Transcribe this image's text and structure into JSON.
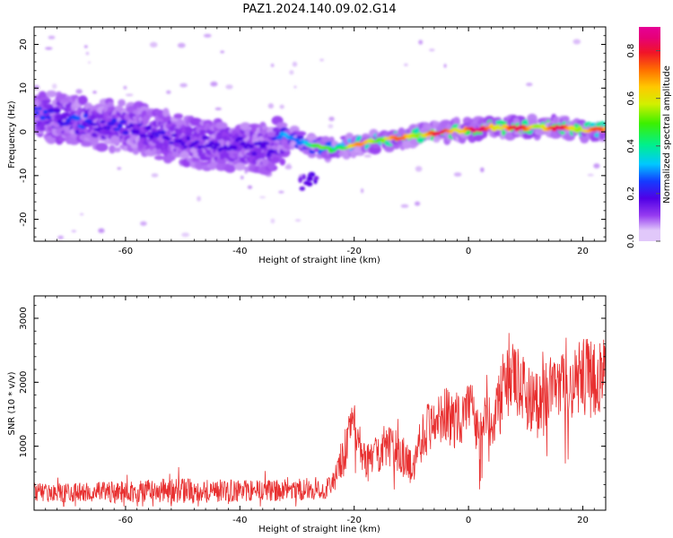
{
  "figure_title": "PAZ1.2024.140.09.02.G14",
  "chart_data": [
    {
      "type": "heatmap",
      "xlabel": "Height of straight line (km)",
      "ylabel": "Frequency (Hz)",
      "xlim": [
        -76,
        24
      ],
      "ylim": [
        -25,
        24
      ],
      "xticks": [
        "-60",
        "-40",
        "-20",
        "0",
        "20"
      ],
      "xtick_values": [
        -60,
        -40,
        -20,
        0,
        20
      ],
      "yticks": [
        "-20",
        "-10",
        "0",
        "10",
        "20"
      ],
      "ytick_values": [
        -20,
        -10,
        0,
        10,
        20
      ],
      "grid": false,
      "colorbar": {
        "label": "Normalized spectral amplitude",
        "ticks": [
          "0.0",
          "0.2",
          "0.4",
          "0.6",
          "0.8"
        ],
        "tick_values": [
          0.0,
          0.2,
          0.4,
          0.6,
          0.8
        ],
        "range": [
          0,
          0.9
        ]
      },
      "ridge": [
        {
          "x": -75,
          "y": 4,
          "a": 0.25
        },
        {
          "x": -70,
          "y": 3,
          "a": 0.28
        },
        {
          "x": -65,
          "y": 2,
          "a": 0.25
        },
        {
          "x": -60,
          "y": 1,
          "a": 0.22
        },
        {
          "x": -55,
          "y": 0,
          "a": 0.2
        },
        {
          "x": -50,
          "y": -2,
          "a": 0.2
        },
        {
          "x": -45,
          "y": -3,
          "a": 0.18
        },
        {
          "x": -40,
          "y": -3,
          "a": 0.17
        },
        {
          "x": -35,
          "y": -4,
          "a": 0.15
        },
        {
          "x": -32,
          "y": -1,
          "a": 0.35
        },
        {
          "x": -28,
          "y": -3,
          "a": 0.45
        },
        {
          "x": -24,
          "y": -4,
          "a": 0.6
        },
        {
          "x": -20,
          "y": -3,
          "a": 0.7
        },
        {
          "x": -16,
          "y": -2,
          "a": 0.75
        },
        {
          "x": -12,
          "y": -1.5,
          "a": 0.75
        },
        {
          "x": -8,
          "y": -0.5,
          "a": 0.8
        },
        {
          "x": -4,
          "y": 0,
          "a": 0.85
        },
        {
          "x": 0,
          "y": 0.5,
          "a": 0.9
        },
        {
          "x": 4,
          "y": 1,
          "a": 0.85
        },
        {
          "x": 8,
          "y": 1,
          "a": 0.85
        },
        {
          "x": 12,
          "y": 1,
          "a": 0.8
        },
        {
          "x": 16,
          "y": 1,
          "a": 0.85
        },
        {
          "x": 20,
          "y": 0.5,
          "a": 0.8
        },
        {
          "x": 24,
          "y": 0.5,
          "a": 0.75
        }
      ]
    },
    {
      "type": "line",
      "xlabel": "Height of straight line (km)",
      "ylabel": "SNR (10 * v/v)",
      "xlim": [
        -76,
        24
      ],
      "ylim": [
        0,
        3350
      ],
      "xticks": [
        "-60",
        "-40",
        "-20",
        "0",
        "20"
      ],
      "xtick_values": [
        -60,
        -40,
        -20,
        0,
        20
      ],
      "yticks": [
        "1000",
        "2000",
        "3000"
      ],
      "ytick_values": [
        1000,
        2000,
        3000
      ],
      "grid": false,
      "line_color": "#e83030",
      "envelope": {
        "x": [
          -76,
          -70,
          -60,
          -50,
          -40,
          -30,
          -24,
          -22,
          -20,
          -18,
          -15,
          -12,
          -10,
          -8,
          -5,
          -2,
          0,
          2,
          5,
          7,
          10,
          12,
          15,
          18,
          20,
          22,
          24
        ],
        "mean": [
          280,
          270,
          290,
          310,
          300,
          320,
          350,
          800,
          1400,
          700,
          1000,
          900,
          650,
          1200,
          1500,
          1400,
          1600,
          1200,
          1600,
          2100,
          1800,
          1700,
          1900,
          1900,
          2100,
          2000,
          2200
        ],
        "amplitude": [
          150,
          150,
          170,
          200,
          170,
          170,
          200,
          350,
          350,
          300,
          350,
          350,
          280,
          400,
          450,
          450,
          500,
          450,
          500,
          700,
          550,
          500,
          550,
          550,
          650,
          600,
          600
        ]
      }
    }
  ]
}
